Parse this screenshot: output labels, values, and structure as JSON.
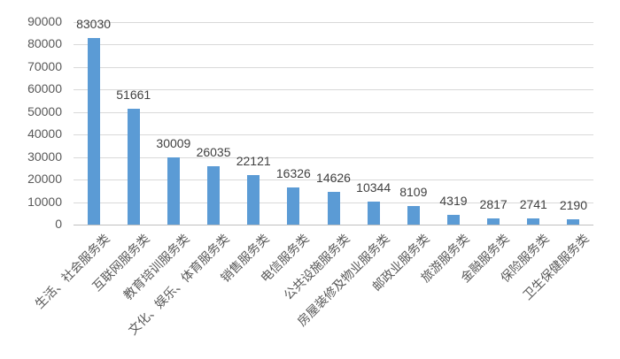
{
  "chart_data": {
    "type": "bar",
    "title": "",
    "xlabel": "",
    "ylabel": "",
    "ylim": [
      0,
      90000
    ],
    "yticks": [
      0,
      10000,
      20000,
      30000,
      40000,
      50000,
      60000,
      70000,
      80000,
      90000
    ],
    "ytick_labels": [
      "0",
      "10000",
      "20000",
      "30000",
      "40000",
      "50000",
      "60000",
      "70000",
      "80000",
      "90000"
    ],
    "grid": true,
    "legend": null,
    "bar_color": "#5b9bd5",
    "categories": [
      "生活、社会服务类",
      "互联网服务类",
      "教育培训服务类",
      "文化、娱乐、体育服务类",
      "销售服务类",
      "电信服务类",
      "公共设施服务类",
      "房屋装修及物业服务类",
      "邮政业服务类",
      "旅游服务类",
      "金融服务类",
      "保险服务类",
      "卫生保健服务类"
    ],
    "values": [
      83030,
      51661,
      30009,
      26035,
      22121,
      16326,
      14626,
      10344,
      8109,
      4319,
      2817,
      2741,
      2190
    ],
    "data_labels": [
      "83030",
      "51661",
      "30009",
      "26035",
      "22121",
      "16326",
      "14626",
      "10344",
      "8109",
      "4319",
      "2817",
      "2741",
      "2190"
    ]
  }
}
